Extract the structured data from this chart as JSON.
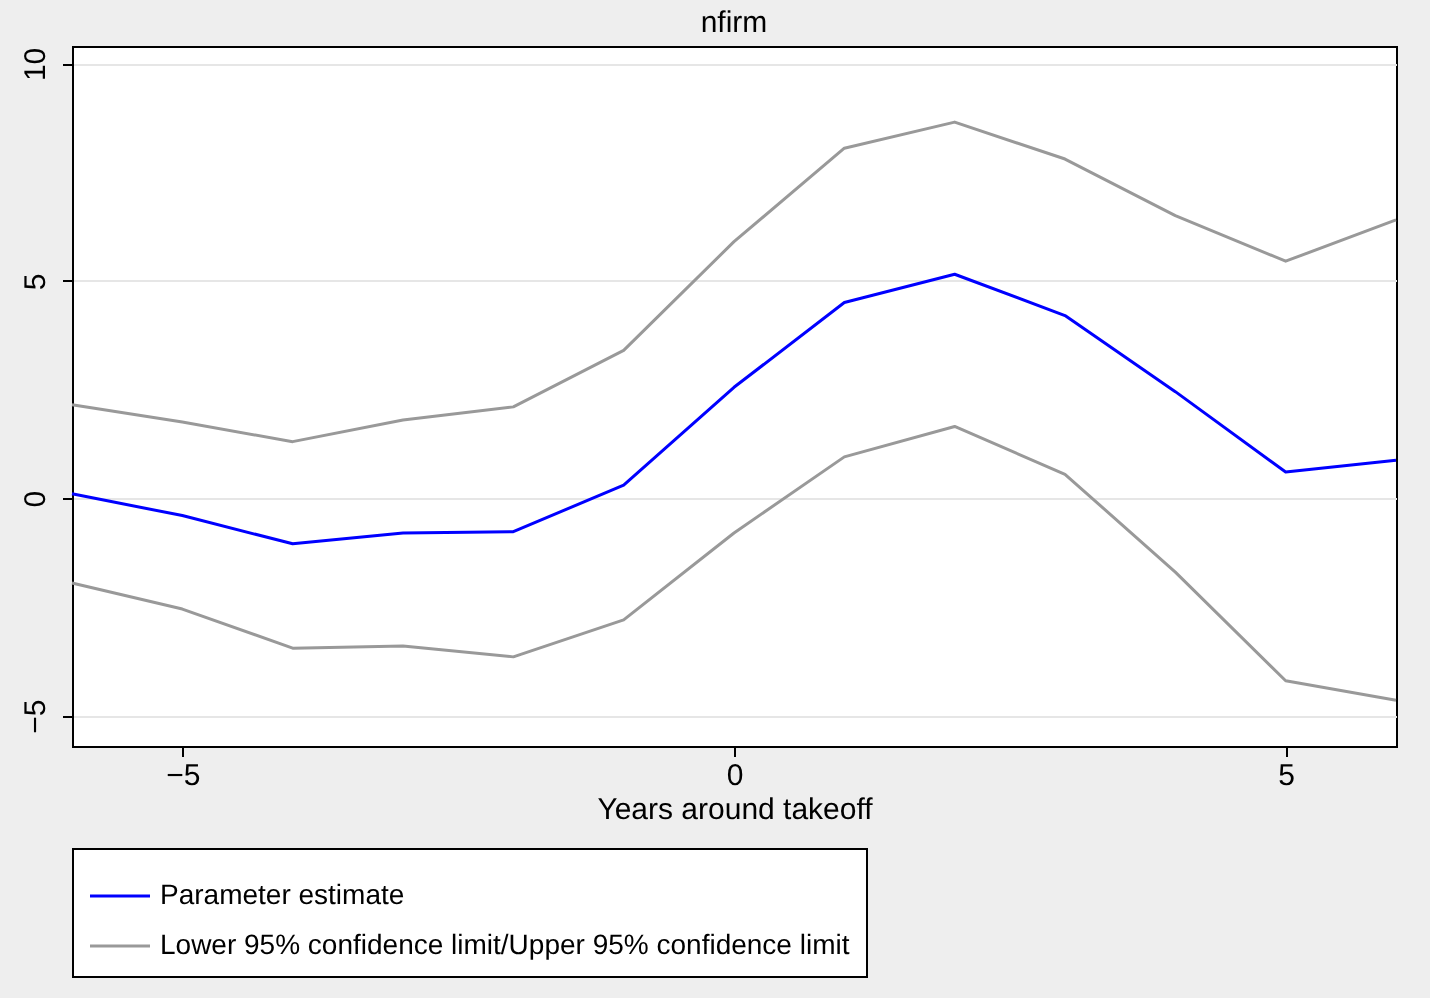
{
  "chart_data": {
    "type": "line",
    "title": "nfirm",
    "xlabel": "Years around takeoff",
    "x": [
      -6,
      -5,
      -4,
      -3,
      -2,
      -1,
      0,
      1,
      2,
      3,
      4,
      5,
      6
    ],
    "series": [
      {
        "name": "Parameter estimate",
        "color": "#0000ff",
        "values": [
          0.1,
          -0.4,
          -1.05,
          -0.8,
          -0.77,
          0.3,
          2.55,
          4.5,
          5.15,
          4.2,
          2.45,
          0.6,
          0.87
        ]
      },
      {
        "name": "Lower 95% confidence limit/Upper 95% confidence limit",
        "color": "#999999",
        "values": [
          -1.95,
          -2.55,
          -3.45,
          -3.4,
          -3.65,
          -2.8,
          -0.8,
          0.95,
          1.65,
          0.55,
          -1.7,
          -4.2,
          -4.65
        ]
      },
      {
        "color": "#999999",
        "values": [
          2.15,
          1.75,
          1.3,
          1.8,
          2.1,
          3.4,
          5.9,
          8.05,
          8.65,
          7.8,
          6.5,
          5.45,
          6.4
        ]
      }
    ],
    "xlim": [
      -6,
      6
    ],
    "xticks": [
      -5,
      0,
      5
    ],
    "ylim": [
      -5.7,
      10.4
    ],
    "yticks": [
      -5,
      0,
      5,
      10
    ],
    "grid": "y",
    "legend": "bottom",
    "marker": "none",
    "line_style": "solid"
  }
}
